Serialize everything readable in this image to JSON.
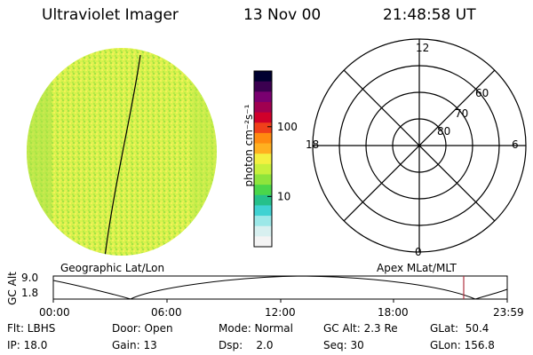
{
  "header": {
    "title": "Ultraviolet Imager",
    "date": "13 Nov 00",
    "time": "21:48:58 UT"
  },
  "colorbar": {
    "unit_label": "photon cm⁻²s⁻¹",
    "ticks": [
      {
        "value": 100,
        "label": "100"
      },
      {
        "value": 10,
        "label": "10"
      }
    ],
    "scale": "log",
    "colors": [
      "#000030",
      "#3b0050",
      "#7a0070",
      "#a00050",
      "#d0002a",
      "#f0401a",
      "#ff8a10",
      "#ffb020",
      "#f4f040",
      "#c8f03c",
      "#8ee43c",
      "#4ad64a",
      "#26c08a",
      "#40d2d2",
      "#9ce8e8",
      "#d8f0f0",
      "#f4f4f4"
    ]
  },
  "polar_plot": {
    "labels": {
      "top": "12",
      "left": "18",
      "right": "6",
      "bottom": "0",
      "lat60": "60",
      "lat70": "70",
      "lat80": "80"
    }
  },
  "geo_label": "Geographic Lat/Lon",
  "apex_label": "Apex MLat/MLT",
  "altitude_plot": {
    "ylabel": "GC Alt",
    "yticks": [
      "9.0",
      "1.8"
    ],
    "xticks": [
      "00:00",
      "06:00",
      "12:00",
      "18:00",
      "23:59"
    ],
    "marker_color": "#b03040"
  },
  "status": {
    "flt": "Flt: LBHS",
    "ip": "IP: 18.0",
    "door": "Door: Open",
    "gain": "Gain: 13",
    "mode": "Mode: Normal",
    "dsp": "Dsp:    2.0",
    "gcalt": "GC Alt: 2.3 Re",
    "seq": "Seq: 30",
    "glat": "GLat:  50.4",
    "glon": "GLon: 156.8"
  }
}
